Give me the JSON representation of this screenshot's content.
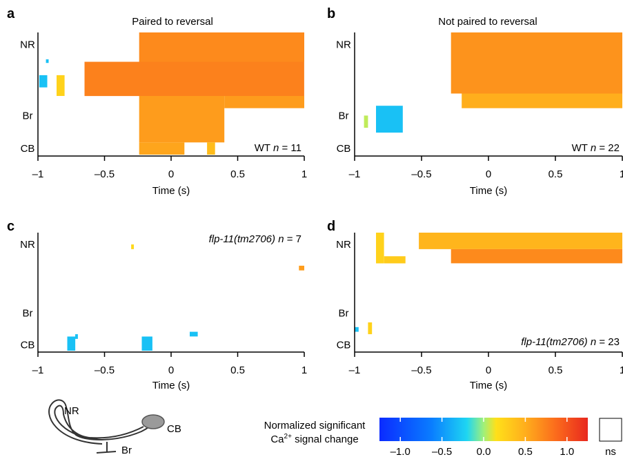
{
  "colors": {
    "scale": [
      "#0b2bff",
      "#0a7dff",
      "#1ed6f2",
      "#9ff07a",
      "#ffe01a",
      "#ffae1c",
      "#fb6a1c",
      "#e8281e"
    ],
    "ns": "#ffffff",
    "axis": "#000000"
  },
  "shared": {
    "xlabel": "Time (s)",
    "xticks": [
      "–1",
      "–0.5",
      "0",
      "0.5",
      "1"
    ],
    "yticks": [
      "NR",
      "Br",
      "CB"
    ]
  },
  "chart_data": [
    {
      "type": "heatmap",
      "panel": "a",
      "title": "Paired to reversal",
      "annotation": {
        "genotype": "WT",
        "n_label": "n",
        "n_value": "= 11"
      },
      "xlabel": "Time (s)",
      "xlim": [
        -1,
        1
      ],
      "ylabel_ticks": [
        "NR",
        "Br",
        "CB"
      ],
      "yrange": [
        0,
        1
      ],
      "blobs": [
        {
          "x": [
            -0.24,
            1.0
          ],
          "y": [
            0.0,
            0.24
          ],
          "v": 0.7
        },
        {
          "x": [
            -0.65,
            1.0
          ],
          "y": [
            0.24,
            0.52
          ],
          "v": 0.75
        },
        {
          "x": [
            -0.24,
            0.4
          ],
          "y": [
            0.52,
            0.9
          ],
          "v": 0.6
        },
        {
          "x": [
            0.4,
            1.0
          ],
          "y": [
            0.52,
            0.62
          ],
          "v": 0.6
        },
        {
          "x": [
            -0.24,
            0.1
          ],
          "y": [
            0.9,
            1.0
          ],
          "v": 0.55
        },
        {
          "x": [
            0.27,
            0.33
          ],
          "y": [
            0.9,
            1.0
          ],
          "v": 0.4
        },
        {
          "x": [
            -0.86,
            -0.8
          ],
          "y": [
            0.35,
            0.52
          ],
          "v": 0.25
        },
        {
          "x": [
            -0.99,
            -0.93
          ],
          "y": [
            0.35,
            0.45
          ],
          "v": -0.3
        },
        {
          "x": [
            -0.94,
            -0.92
          ],
          "y": [
            0.22,
            0.25
          ],
          "v": -0.3
        }
      ]
    },
    {
      "type": "heatmap",
      "panel": "b",
      "title": "Not paired to reversal",
      "annotation": {
        "genotype": "WT",
        "n_label": "n",
        "n_value": "= 22"
      },
      "xlabel": "Time (s)",
      "xlim": [
        -1,
        1
      ],
      "ylabel_ticks": [
        "NR",
        "Br",
        "CB"
      ],
      "yrange": [
        0,
        1
      ],
      "blobs": [
        {
          "x": [
            -0.28,
            1.0
          ],
          "y": [
            0.0,
            0.5
          ],
          "v": 0.65
        },
        {
          "x": [
            -0.2,
            1.0
          ],
          "y": [
            0.5,
            0.62
          ],
          "v": 0.5
        },
        {
          "x": [
            -0.84,
            -0.64
          ],
          "y": [
            0.6,
            0.82
          ],
          "v": -0.3
        },
        {
          "x": [
            -0.93,
            -0.9
          ],
          "y": [
            0.68,
            0.78
          ],
          "v": 0.05
        }
      ]
    },
    {
      "type": "heatmap",
      "panel": "c",
      "title": "",
      "annotation": {
        "genotype": "flp-11(tm2706)",
        "n_label": "n",
        "n_value": "= 7"
      },
      "xlabel": "Time (s)",
      "xlim": [
        -1,
        1
      ],
      "ylabel_ticks": [
        "NR",
        "Br",
        "CB"
      ],
      "yrange": [
        0,
        1
      ],
      "blobs": [
        {
          "x": [
            -0.3,
            -0.28
          ],
          "y": [
            0.1,
            0.14
          ],
          "v": 0.2
        },
        {
          "x": [
            0.96,
            1.0
          ],
          "y": [
            0.28,
            0.32
          ],
          "v": 0.6
        },
        {
          "x": [
            -0.78,
            -0.72
          ],
          "y": [
            0.88,
            1.0
          ],
          "v": -0.3
        },
        {
          "x": [
            -0.72,
            -0.7
          ],
          "y": [
            0.86,
            0.9
          ],
          "v": -0.3
        },
        {
          "x": [
            -0.22,
            -0.14
          ],
          "y": [
            0.88,
            1.0
          ],
          "v": -0.3
        },
        {
          "x": [
            0.14,
            0.2
          ],
          "y": [
            0.84,
            0.88
          ],
          "v": -0.3
        }
      ]
    },
    {
      "type": "heatmap",
      "panel": "d",
      "title": "",
      "annotation": {
        "genotype": "flp-11(tm2706)",
        "n_label": "n",
        "n_value": "= 23"
      },
      "xlabel": "Time (s)",
      "xlim": [
        -1,
        1
      ],
      "ylabel_ticks": [
        "NR",
        "Br",
        "CB"
      ],
      "yrange": [
        0,
        1
      ],
      "blobs": [
        {
          "x": [
            -0.52,
            1.0
          ],
          "y": [
            0.0,
            0.14
          ],
          "v": 0.45
        },
        {
          "x": [
            -0.28,
            1.0
          ],
          "y": [
            0.14,
            0.26
          ],
          "v": 0.7
        },
        {
          "x": [
            -0.84,
            -0.78
          ],
          "y": [
            0.0,
            0.26
          ],
          "v": 0.25
        },
        {
          "x": [
            -0.78,
            -0.62
          ],
          "y": [
            0.2,
            0.26
          ],
          "v": 0.3
        },
        {
          "x": [
            -1.0,
            -0.97
          ],
          "y": [
            0.8,
            0.84
          ],
          "v": -0.3
        },
        {
          "x": [
            -0.9,
            -0.87
          ],
          "y": [
            0.76,
            0.86
          ],
          "v": 0.25
        }
      ]
    }
  ],
  "legend": {
    "line1": "Normalized significant",
    "line2_prefix": "Ca",
    "line2_sup": "2+",
    "line2_suffix": " signal change",
    "ticks": [
      "–1.0",
      "–0.5",
      "0.0",
      "0.5",
      "1.0"
    ],
    "range": [
      -1.25,
      1.25
    ],
    "ns_label": "ns"
  },
  "neuron": {
    "nr_label": "NR",
    "cb_label": "CB",
    "br_label": "Br"
  }
}
